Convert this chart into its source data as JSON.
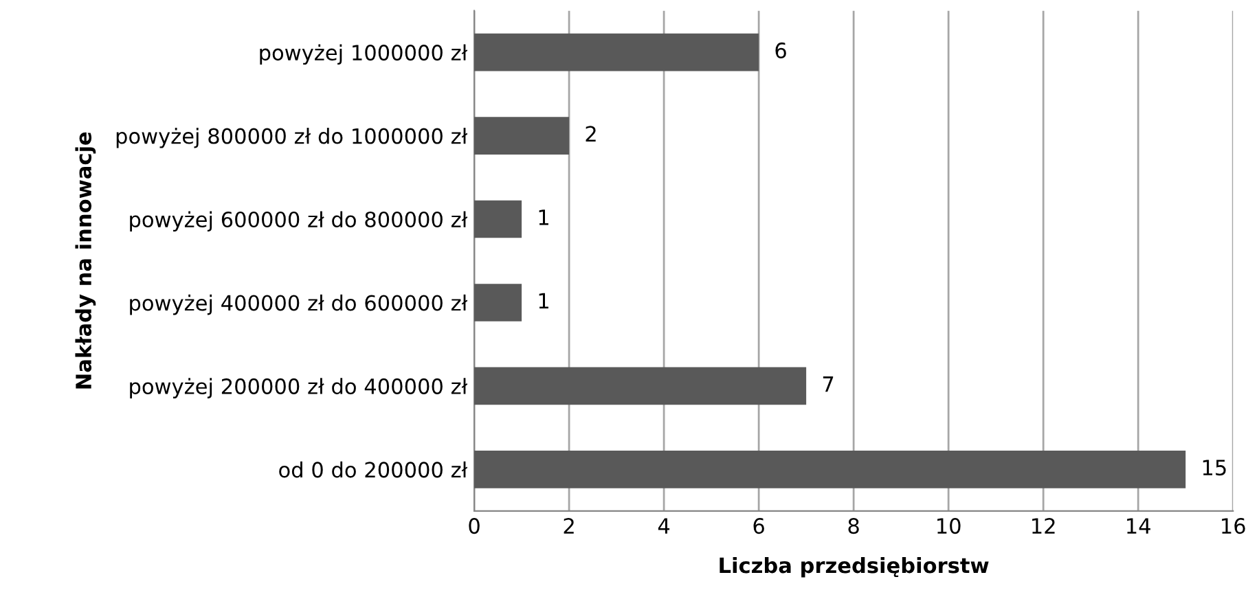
{
  "chart_data": {
    "type": "bar",
    "orientation": "horizontal",
    "categories": [
      "powyżej 1000000 zł",
      "powyżej 800000 zł do 1000000 zł",
      "powyżej 600000 zł do 800000 zł",
      "powyżej 400000 zł do 600000 zł",
      "powyżej 200000 zł do 400000 zł",
      "od 0 do 200000 zł"
    ],
    "values": [
      6,
      2,
      1,
      1,
      7,
      15
    ],
    "color": "#595959",
    "xlabel": "Liczba przedsiębiorstw",
    "ylabel": "Nakłady na innowacje",
    "xlim": [
      0,
      16
    ],
    "xticks": [
      0,
      2,
      4,
      6,
      8,
      10,
      12,
      14,
      16
    ],
    "grid": "x",
    "data_labels": true
  }
}
